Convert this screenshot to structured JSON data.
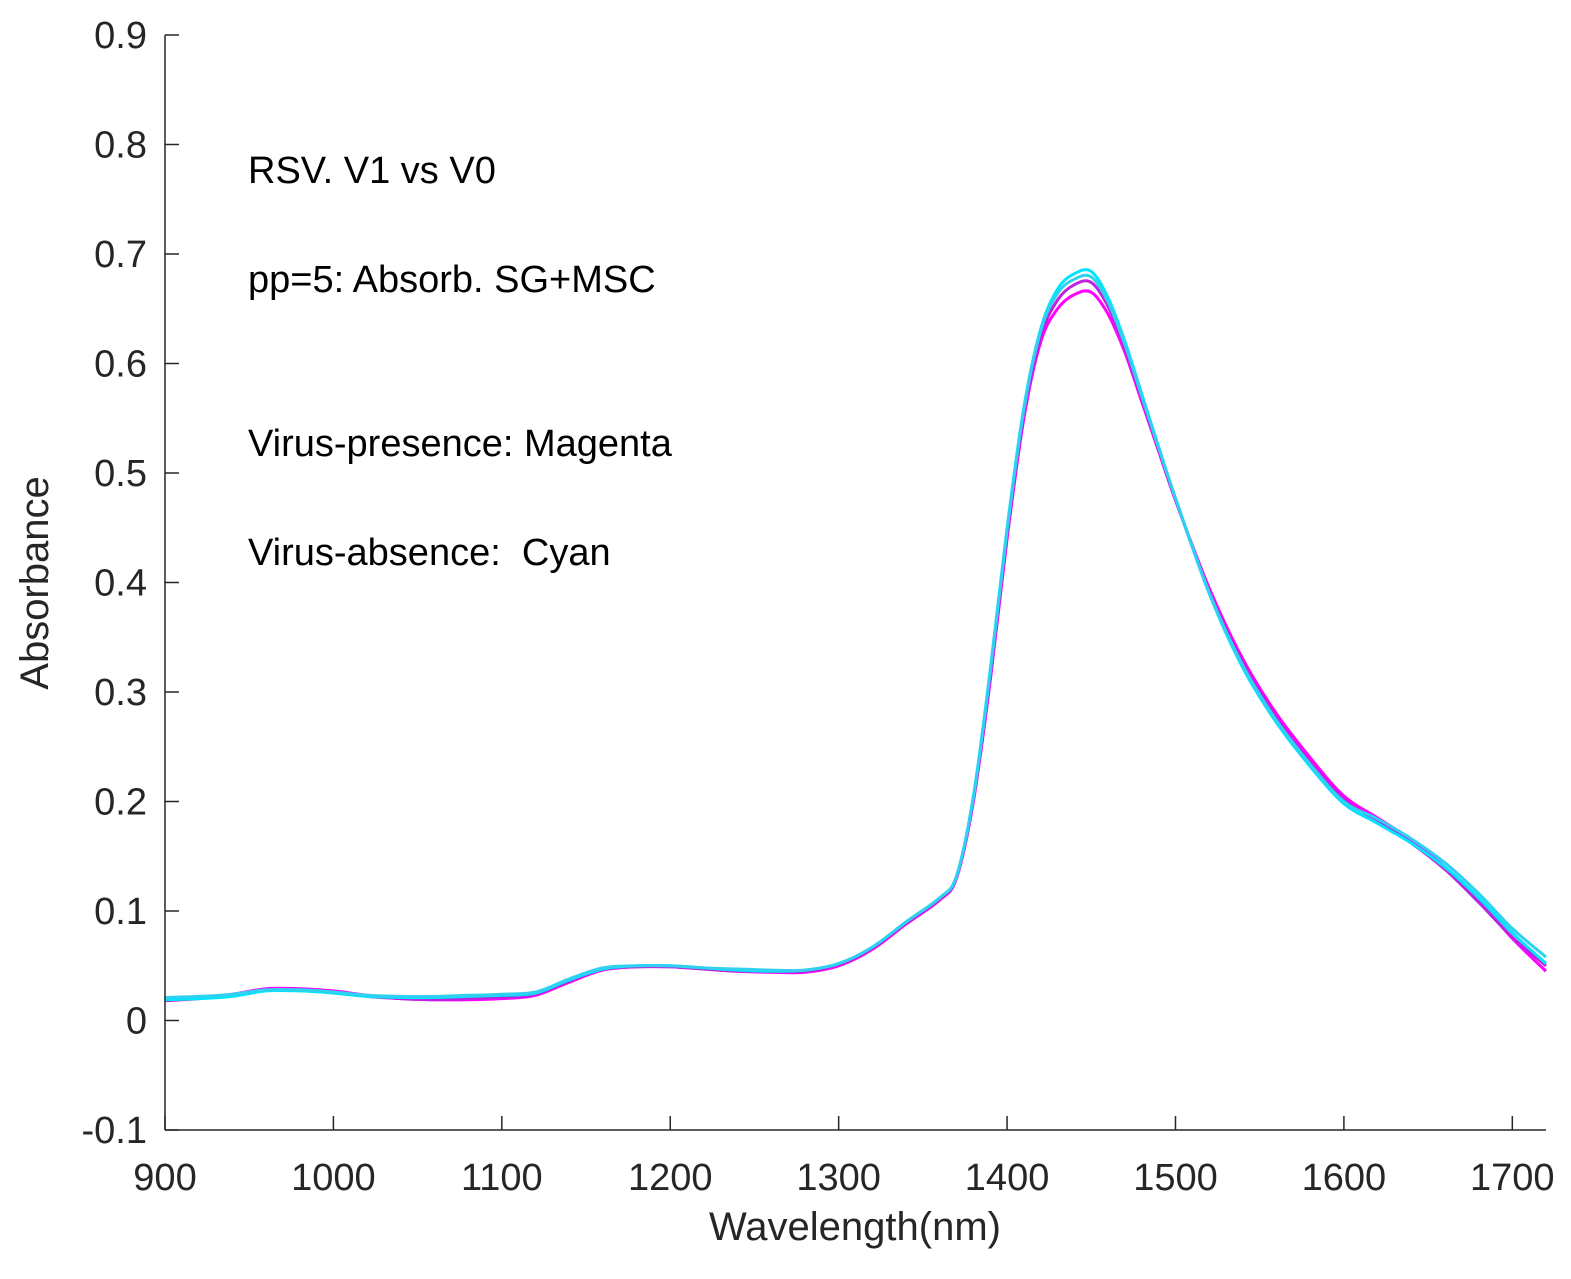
{
  "chart_data": {
    "type": "line",
    "title": "",
    "xlabel": "Wavelength(nm)",
    "ylabel": "Absorbance",
    "xlim": [
      900,
      1720
    ],
    "ylim": [
      -0.1,
      0.9
    ],
    "grid": false,
    "xticks": [
      900,
      1000,
      1100,
      1200,
      1300,
      1400,
      1500,
      1600,
      1700
    ],
    "xtick_labels": [
      "900",
      "1000",
      "1100",
      "1200",
      "1300",
      "1400",
      "1500",
      "1600",
      "1700"
    ],
    "yticks": [
      -0.1,
      0,
      0.1,
      0.2,
      0.3,
      0.4,
      0.5,
      0.6,
      0.7,
      0.8,
      0.9
    ],
    "ytick_labels": [
      "-0.1",
      "0",
      "0.1",
      "0.2",
      "0.3",
      "0.4",
      "0.5",
      "0.6",
      "0.7",
      "0.8",
      "0.9"
    ],
    "annotations": [
      "RSV. V1 vs V0",
      "pp=5: Absorb. SG+MSC",
      "Virus-presence: Magenta",
      "Virus-absence:  Cyan"
    ],
    "x": [
      900,
      920,
      940,
      960,
      980,
      1000,
      1020,
      1040,
      1060,
      1080,
      1100,
      1120,
      1140,
      1160,
      1180,
      1200,
      1220,
      1240,
      1260,
      1280,
      1300,
      1320,
      1340,
      1360,
      1370,
      1380,
      1390,
      1400,
      1410,
      1420,
      1430,
      1440,
      1450,
      1460,
      1470,
      1480,
      1490,
      1500,
      1520,
      1540,
      1560,
      1580,
      1600,
      1620,
      1640,
      1660,
      1680,
      1700,
      1720
    ],
    "series": [
      {
        "name": "Virus-presence",
        "color": "#ff00ff",
        "values": [
          0.02,
          0.021,
          0.024,
          0.029,
          0.029,
          0.027,
          0.023,
          0.02,
          0.019,
          0.019,
          0.02,
          0.023,
          0.035,
          0.046,
          0.049,
          0.049,
          0.047,
          0.045,
          0.044,
          0.044,
          0.05,
          0.065,
          0.088,
          0.11,
          0.13,
          0.2,
          0.31,
          0.44,
          0.55,
          0.62,
          0.65,
          0.663,
          0.665,
          0.645,
          0.61,
          0.565,
          0.52,
          0.475,
          0.395,
          0.33,
          0.28,
          0.24,
          0.205,
          0.185,
          0.165,
          0.14,
          0.11,
          0.075,
          0.045
        ]
      },
      {
        "name": "Virus-presence",
        "color": "#c020e0",
        "values": [
          0.018,
          0.02,
          0.023,
          0.028,
          0.028,
          0.026,
          0.022,
          0.02,
          0.019,
          0.02,
          0.021,
          0.024,
          0.036,
          0.047,
          0.049,
          0.049,
          0.047,
          0.045,
          0.045,
          0.045,
          0.051,
          0.066,
          0.089,
          0.111,
          0.131,
          0.202,
          0.315,
          0.445,
          0.555,
          0.625,
          0.658,
          0.672,
          0.674,
          0.652,
          0.614,
          0.568,
          0.522,
          0.476,
          0.392,
          0.326,
          0.276,
          0.236,
          0.202,
          0.182,
          0.162,
          0.138,
          0.108,
          0.076,
          0.05
        ]
      },
      {
        "name": "Virus-absence",
        "color": "#00e5ff",
        "values": [
          0.019,
          0.02,
          0.022,
          0.027,
          0.027,
          0.025,
          0.022,
          0.021,
          0.021,
          0.022,
          0.023,
          0.025,
          0.037,
          0.047,
          0.05,
          0.05,
          0.048,
          0.046,
          0.045,
          0.046,
          0.052,
          0.067,
          0.09,
          0.112,
          0.132,
          0.205,
          0.32,
          0.45,
          0.56,
          0.632,
          0.668,
          0.682,
          0.684,
          0.66,
          0.62,
          0.572,
          0.524,
          0.477,
          0.39,
          0.322,
          0.272,
          0.232,
          0.198,
          0.18,
          0.162,
          0.14,
          0.112,
          0.08,
          0.052
        ]
      },
      {
        "name": "Virus-absence",
        "color": "#30d0f0",
        "values": [
          0.021,
          0.022,
          0.024,
          0.028,
          0.028,
          0.026,
          0.023,
          0.022,
          0.022,
          0.023,
          0.024,
          0.026,
          0.038,
          0.048,
          0.05,
          0.05,
          0.048,
          0.047,
          0.046,
          0.046,
          0.052,
          0.067,
          0.09,
          0.112,
          0.132,
          0.204,
          0.318,
          0.448,
          0.558,
          0.63,
          0.664,
          0.677,
          0.679,
          0.656,
          0.617,
          0.57,
          0.523,
          0.477,
          0.391,
          0.324,
          0.274,
          0.234,
          0.2,
          0.184,
          0.166,
          0.144,
          0.116,
          0.084,
          0.058
        ]
      }
    ]
  }
}
